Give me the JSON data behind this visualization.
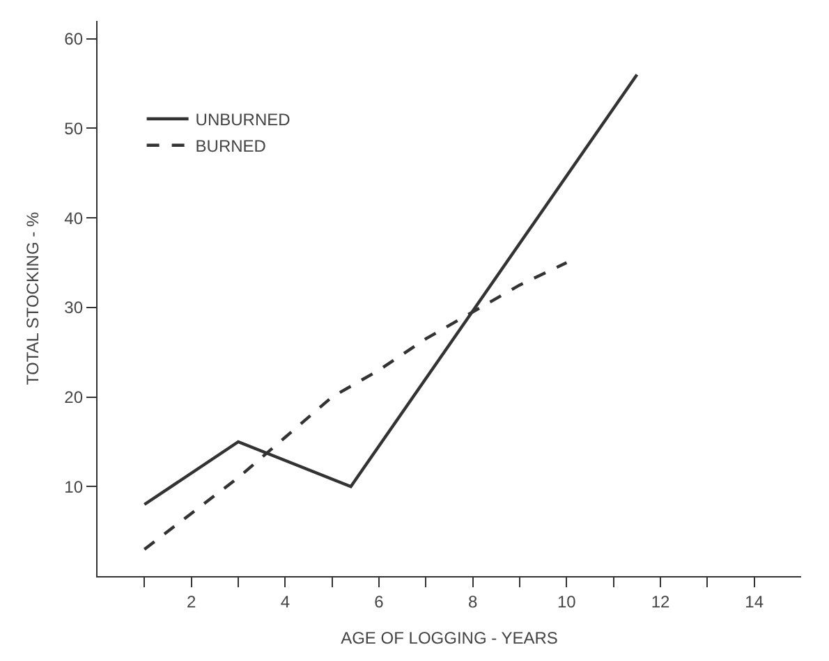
{
  "chart_data": {
    "type": "line",
    "xlabel": "AGE OF LOGGING - YEARS",
    "ylabel": "TOTAL STOCKING - %",
    "xlim": [
      0,
      15
    ],
    "ylim": [
      0,
      62
    ],
    "xticks": [
      {
        "value": 1,
        "label": null
      },
      2,
      {
        "value": 3,
        "label": null
      },
      4,
      {
        "value": 5,
        "label": null
      },
      6,
      {
        "value": 7,
        "label": null
      },
      8,
      {
        "value": 9,
        "label": null
      },
      10,
      {
        "value": 11,
        "label": null
      },
      12,
      {
        "value": 13,
        "label": null
      },
      14
    ],
    "yticks": [
      10,
      20,
      30,
      40,
      50,
      60
    ],
    "legend": "top left",
    "marker": "none",
    "series": [
      {
        "name": "UNBURNED",
        "color": "#333333",
        "line_style": "solid",
        "x": [
          1,
          3,
          5.4,
          11.5
        ],
        "values": [
          8,
          15,
          10,
          56
        ]
      },
      {
        "name": "BURNED",
        "color": "#333333",
        "line_style": "dashed",
        "x": [
          1,
          2,
          3,
          4,
          5,
          6,
          7,
          8,
          9,
          10
        ],
        "values": [
          3,
          7,
          11,
          15.5,
          20,
          23,
          26.5,
          29.5,
          32.5,
          35
        ]
      }
    ]
  }
}
